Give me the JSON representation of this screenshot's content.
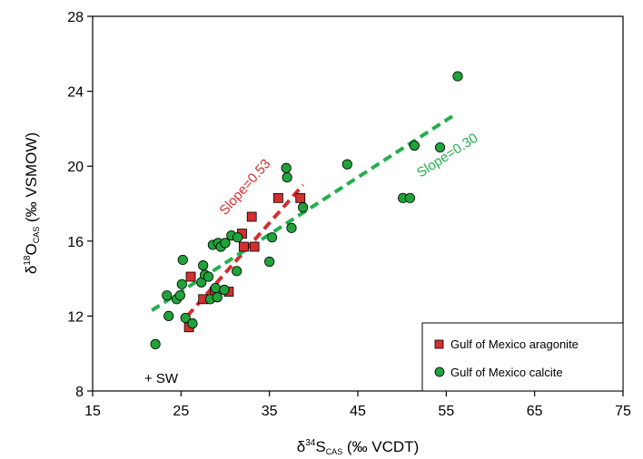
{
  "chart_data": {
    "type": "scatter",
    "xlabel": {
      "main": "δ",
      "sup": "34",
      "sym": "S",
      "sub": "CAS",
      "rest": " (‰ VCDT)"
    },
    "ylabel": {
      "main": "δ",
      "sup": "18",
      "sym": "O",
      "sub": "CAS",
      "rest": " (‰ VSMOW)"
    },
    "xlim": [
      15,
      75
    ],
    "ylim": [
      8,
      28
    ],
    "x_ticks": [
      15,
      25,
      35,
      45,
      55,
      65,
      75
    ],
    "y_ticks": [
      8,
      12,
      16,
      20,
      24,
      28
    ],
    "grid": false,
    "legend_position": "bottom-right",
    "colors": {
      "aragonite": "#d32f2f",
      "calcite": "#1fa33a",
      "calcite_line": "#22b04b"
    },
    "series": [
      {
        "name": "Gulf of Mexico aragonite",
        "marker": "square",
        "points": [
          {
            "x": 25.9,
            "y": 11.4
          },
          {
            "x": 26.1,
            "y": 14.1
          },
          {
            "x": 27.5,
            "y": 12.9
          },
          {
            "x": 28.8,
            "y": 13.3
          },
          {
            "x": 30.4,
            "y": 13.3
          },
          {
            "x": 31.9,
            "y": 16.4
          },
          {
            "x": 32.1,
            "y": 15.7
          },
          {
            "x": 33.0,
            "y": 17.3
          },
          {
            "x": 33.3,
            "y": 15.7
          },
          {
            "x": 36.0,
            "y": 18.3
          },
          {
            "x": 38.5,
            "y": 18.3
          }
        ]
      },
      {
        "name": "Gulf of Mexico calcite",
        "marker": "circle",
        "points": [
          {
            "x": 22.1,
            "y": 10.5
          },
          {
            "x": 23.4,
            "y": 13.1
          },
          {
            "x": 23.6,
            "y": 12.0
          },
          {
            "x": 24.5,
            "y": 12.9
          },
          {
            "x": 24.9,
            "y": 13.1
          },
          {
            "x": 25.1,
            "y": 13.7
          },
          {
            "x": 25.2,
            "y": 15.0
          },
          {
            "x": 25.5,
            "y": 11.9
          },
          {
            "x": 26.3,
            "y": 11.6
          },
          {
            "x": 27.3,
            "y": 13.8
          },
          {
            "x": 27.5,
            "y": 14.7
          },
          {
            "x": 27.7,
            "y": 14.2
          },
          {
            "x": 28.1,
            "y": 14.1
          },
          {
            "x": 28.3,
            "y": 12.9
          },
          {
            "x": 28.6,
            "y": 15.8
          },
          {
            "x": 28.9,
            "y": 13.5
          },
          {
            "x": 29.1,
            "y": 13.0
          },
          {
            "x": 29.2,
            "y": 15.9
          },
          {
            "x": 29.5,
            "y": 15.7
          },
          {
            "x": 29.9,
            "y": 13.4
          },
          {
            "x": 30.0,
            "y": 15.9
          },
          {
            "x": 30.7,
            "y": 16.3
          },
          {
            "x": 31.3,
            "y": 14.4
          },
          {
            "x": 31.4,
            "y": 16.2
          },
          {
            "x": 35.0,
            "y": 14.9
          },
          {
            "x": 35.3,
            "y": 16.2
          },
          {
            "x": 36.9,
            "y": 19.9
          },
          {
            "x": 37.0,
            "y": 19.4
          },
          {
            "x": 37.5,
            "y": 16.7
          },
          {
            "x": 38.8,
            "y": 17.8
          },
          {
            "x": 43.8,
            "y": 20.1
          },
          {
            "x": 50.1,
            "y": 18.3
          },
          {
            "x": 50.9,
            "y": 18.3
          },
          {
            "x": 51.4,
            "y": 21.1
          },
          {
            "x": 54.3,
            "y": 21.0
          },
          {
            "x": 56.3,
            "y": 24.8
          }
        ]
      }
    ],
    "fit_lines": [
      {
        "series": "Gulf of Mexico aragonite",
        "label": "Slope=0.53",
        "x": [
          25.7,
          38.8
        ],
        "y": [
          12.0,
          19.0
        ]
      },
      {
        "series": "Gulf of Mexico calcite",
        "label": "Slope=0.30",
        "x": [
          21.7,
          55.8
        ],
        "y": [
          12.3,
          22.7
        ]
      }
    ],
    "annotation": {
      "label": "+ SW",
      "x": 21.9,
      "y": 9.0
    }
  }
}
